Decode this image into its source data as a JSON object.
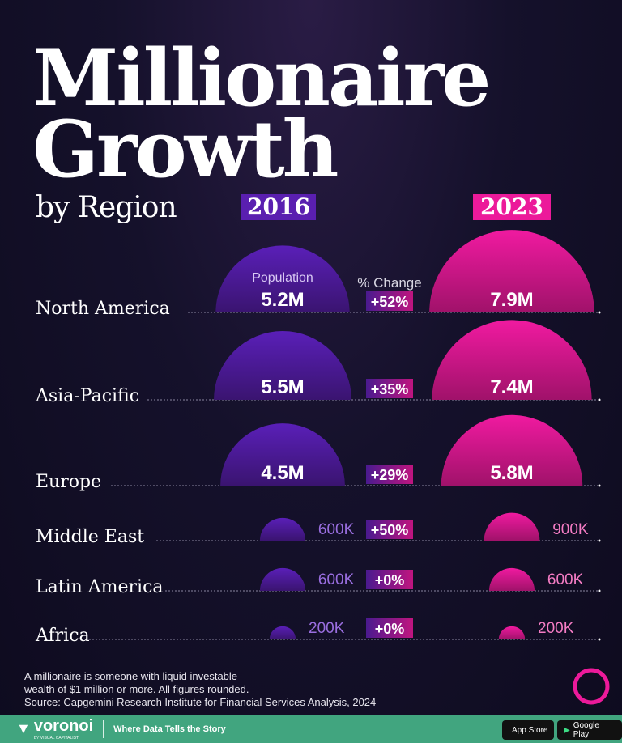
{
  "title_line1": "Millionaire",
  "title_line2": "Growth",
  "subtitle": "by Region",
  "colors": {
    "y2016": "#5a1fb0",
    "y2023": "#ec1a9a",
    "background": "#13102a",
    "footer": "#41a57f"
  },
  "chart_data": {
    "type": "semicircle-comparison",
    "years": [
      "2016",
      "2023"
    ],
    "col_label_population": "Population",
    "col_label_change": "% Change",
    "categories": [
      "North America",
      "Asia-Pacific",
      "Europe",
      "Middle East",
      "Latin America",
      "Africa"
    ],
    "series": [
      {
        "name": "2016",
        "values": [
          5.2,
          5.5,
          4.5,
          0.6,
          0.6,
          0.2
        ],
        "labels": [
          "5.2M",
          "5.5M",
          "4.5M",
          "600K",
          "600K",
          "200K"
        ]
      },
      {
        "name": "2023",
        "values": [
          7.9,
          7.4,
          5.8,
          0.9,
          0.6,
          0.2
        ],
        "labels": [
          "7.9M",
          "7.4M",
          "5.8M",
          "900K",
          "600K",
          "200K"
        ]
      }
    ],
    "change": [
      "+52%",
      "+35%",
      "+29%",
      "+50%",
      "+0%",
      "+0%"
    ],
    "unit": "millions"
  },
  "footnote": [
    "A millionaire is someone with liquid investable",
    "wealth of $1 million or more. All figures rounded.",
    "Source: Capgemini Research Institute for Financial Services Analysis, 2024"
  ],
  "footer": {
    "brand": "voronoi",
    "brand_sub": "BY VISUAL CAPITALIST",
    "tagline": "Where Data Tells the Story",
    "app_store": "App Store",
    "google_play": "Google Play"
  }
}
